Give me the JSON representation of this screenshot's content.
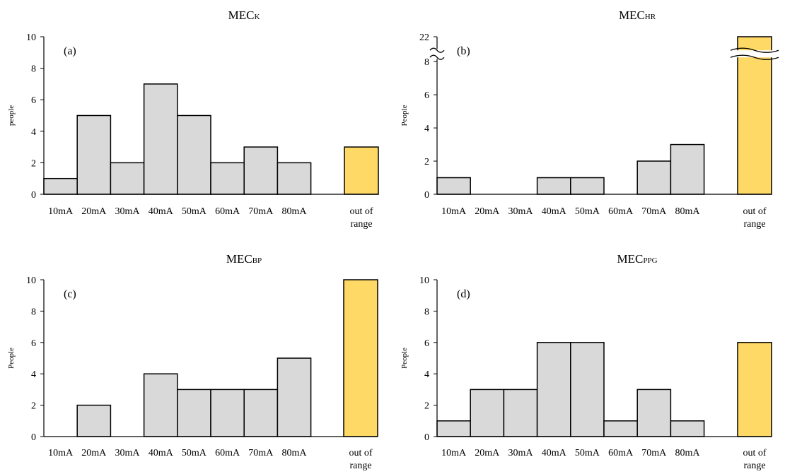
{
  "chart_data": [
    {
      "type": "bar",
      "title": "MEC",
      "title_sub": "K",
      "panel_label": "(a)",
      "ylabel": "people",
      "categories": [
        "10mA",
        "20mA",
        "30mA",
        "40mA",
        "50mA",
        "60mA",
        "70mA",
        "80mA",
        ""
      ],
      "values": [
        1,
        5,
        2,
        7,
        5,
        2,
        3,
        2,
        0
      ],
      "extra_category": [
        "out of",
        "range"
      ],
      "extra_value": 3,
      "ylim": [
        0,
        10
      ],
      "yticks": [
        "0",
        "2",
        "4",
        "6",
        "8",
        "10"
      ],
      "grid": false,
      "bar_color": "#d9d9d9",
      "extra_color": "#ffd966"
    },
    {
      "type": "bar",
      "title": "MEC",
      "title_sub": "HR",
      "panel_label": "(b)",
      "ylabel": "People",
      "categories": [
        "10mA",
        "20mA",
        "30mA",
        "40mA",
        "50mA",
        "60mA",
        "70mA",
        "80mA",
        ""
      ],
      "values": [
        1,
        0,
        0,
        1,
        1,
        0,
        2,
        3,
        0
      ],
      "extra_category": [
        "out of",
        "range"
      ],
      "extra_value": 22,
      "ylim": [
        0,
        9.5
      ],
      "yticks": [
        "0",
        "2",
        "4",
        "6",
        "8"
      ],
      "axis_break_label": "22",
      "grid": false,
      "bar_color": "#d9d9d9",
      "extra_color": "#ffd966"
    },
    {
      "type": "bar",
      "title": "MEC",
      "title_sub": "BP",
      "panel_label": "(c)",
      "ylabel": "People",
      "categories": [
        "10mA",
        "20mA",
        "30mA",
        "40mA",
        "50mA",
        "60mA",
        "70mA",
        "80mA",
        ""
      ],
      "values": [
        0,
        2,
        0,
        4,
        3,
        3,
        3,
        5,
        0
      ],
      "extra_category": [
        "out of",
        "range"
      ],
      "extra_value": 10,
      "ylim": [
        0,
        10
      ],
      "yticks": [
        "0",
        "2",
        "4",
        "6",
        "8",
        "10"
      ],
      "grid": false,
      "bar_color": "#d9d9d9",
      "extra_color": "#ffd966"
    },
    {
      "type": "bar",
      "title": "MEC",
      "title_sub": "PPG",
      "panel_label": "(d)",
      "ylabel": "People",
      "categories": [
        "10mA",
        "20mA",
        "30mA",
        "40mA",
        "50mA",
        "60mA",
        "70mA",
        "80mA",
        ""
      ],
      "values": [
        1,
        3,
        3,
        6,
        6,
        1,
        3,
        1,
        0
      ],
      "extra_category": [
        "out of",
        "range"
      ],
      "extra_value": 6,
      "ylim": [
        0,
        10
      ],
      "yticks": [
        "0",
        "2",
        "4",
        "6",
        "8",
        "10"
      ],
      "grid": false,
      "bar_color": "#d9d9d9",
      "extra_color": "#ffd966"
    }
  ]
}
